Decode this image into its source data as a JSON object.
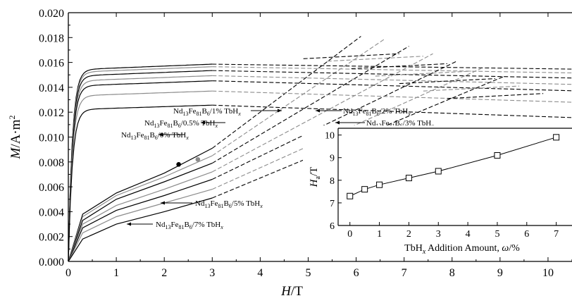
{
  "chart_data": [
    {
      "type": "line",
      "role": "main",
      "xlabel": {
        "italic": "H",
        "rest": "/T"
      },
      "ylabel": {
        "italic": "M",
        "rest": "/A·m",
        "sup": "2"
      },
      "xlim": [
        0,
        10.5
      ],
      "ylim": [
        0,
        0.02
      ],
      "x_ticks": [
        "0",
        "1",
        "2",
        "3",
        "4",
        "5",
        "6",
        "7",
        "8",
        "9",
        "10"
      ],
      "y_ticks": [
        "0.000",
        "0.002",
        "0.004",
        "0.006",
        "0.008",
        "0.010",
        "0.012",
        "0.014",
        "0.016",
        "0.018",
        "0.020"
      ],
      "colors": {
        "axis": "#000000",
        "curve_dark": "#000000",
        "curve_gray": "#8c8c8c"
      },
      "series": [
        {
          "name": "Nd13Fe81B6/0% TbHx",
          "label_parts": [
            "Nd",
            "13",
            "Fe",
            "81",
            "B",
            "6",
            "/0% TbH",
            "x"
          ],
          "ms": 0.0154,
          "endpoint": [
            2.3,
            0.0078
          ],
          "x": [
            0,
            0.3,
            1.0,
            2.0,
            3.0
          ],
          "y": [
            0,
            0.0038,
            0.0055,
            0.0071,
            0.0091
          ]
        },
        {
          "name": "Nd13Fe81B6/0.5% TbHx",
          "label_parts": [
            "Nd",
            "13",
            "Fe",
            "81",
            "B",
            "6",
            "/0.5% TbH",
            "x"
          ],
          "ms": 0.0152,
          "endpoint": [
            2.7,
            0.0082
          ],
          "x": [
            0,
            0.3,
            1.0,
            2.0,
            3.0
          ],
          "y": [
            0,
            0.0036,
            0.0053,
            0.0068,
            0.0085
          ]
        },
        {
          "name": "Nd13Fe81B6/1% TbHx",
          "label_parts": [
            "Nd",
            "13",
            "Fe",
            "81",
            "B",
            "6",
            "/1% TbH",
            "x"
          ],
          "ms": 0.0149,
          "x": [
            0,
            0.3,
            1.0,
            2.0,
            3.0
          ],
          "y": [
            0,
            0.0033,
            0.005,
            0.0064,
            0.0079
          ]
        },
        {
          "name": "Nd13Fe81B6/2% TbHx",
          "label_parts": [
            "Nd",
            "13",
            "Fe",
            "81",
            "B",
            "6",
            "/2% TbH",
            "x"
          ],
          "ms": 0.0145,
          "x": [
            0,
            0.3,
            1.0,
            2.0,
            3.0
          ],
          "y": [
            0,
            0.003,
            0.0045,
            0.0058,
            0.0072
          ]
        },
        {
          "name": "Nd13Fe81B6/3% TbHx",
          "label_parts": [
            "Nd",
            "13",
            "Fe",
            "81",
            "B",
            "6",
            "/3% TbH",
            "x"
          ],
          "ms": 0.0141,
          "x": [
            0,
            0.3,
            1.0,
            2.0,
            3.0
          ],
          "y": [
            0,
            0.0027,
            0.0041,
            0.0053,
            0.0066
          ]
        },
        {
          "name": "Nd13Fe81B6/5% TbHx",
          "label_parts": [
            "Nd",
            "13",
            "Fe",
            "81",
            "B",
            "6",
            "/5% TbH",
            "x"
          ],
          "ms": 0.0133,
          "x": [
            0,
            0.3,
            1.0,
            2.0,
            3.0
          ],
          "y": [
            0,
            0.0023,
            0.0036,
            0.0047,
            0.0058
          ]
        },
        {
          "name": "Nd13Fe81B6/7% TbHx",
          "label_parts": [
            "Nd",
            "13",
            "Fe",
            "81",
            "B",
            "6",
            "/7% TbH",
            "x"
          ],
          "ms": 0.0122,
          "x": [
            0,
            0.3,
            1.0,
            2.0,
            3.0
          ],
          "y": [
            0,
            0.0018,
            0.003,
            0.004,
            0.0051
          ]
        }
      ]
    },
    {
      "type": "line",
      "role": "inset",
      "xlabel": {
        "pre": "TbH",
        "sub": "x",
        "mid": " Addition Amount, ",
        "italic": "ω",
        "rest": "/%"
      },
      "ylabel": {
        "italic": "H",
        "sub": "a",
        "rest": "/T"
      },
      "xlim": [
        -0.4,
        7.2
      ],
      "ylim": [
        6,
        10.3
      ],
      "x_ticks": [
        "0",
        "1",
        "2",
        "3",
        "4",
        "5",
        "6",
        "7"
      ],
      "y_ticks": [
        "6",
        "7",
        "8",
        "9",
        "10"
      ],
      "marker": "open-square",
      "x": [
        0,
        0.5,
        1,
        2,
        3,
        5,
        7
      ],
      "y": [
        7.3,
        7.6,
        7.8,
        8.1,
        8.4,
        9.1,
        9.9
      ]
    }
  ]
}
